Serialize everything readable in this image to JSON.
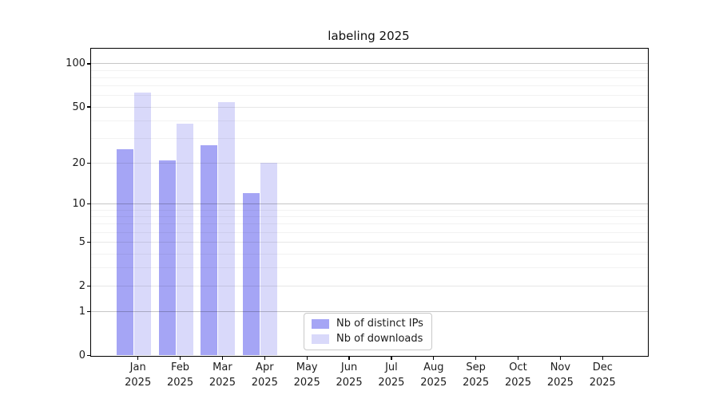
{
  "title": "labeling 2025",
  "chart_data": {
    "type": "bar",
    "title": "labeling 2025",
    "yscale": "log1p",
    "grid": "on",
    "legend_position": "lower center-left inside plot",
    "months": [
      "Jan",
      "Feb",
      "Mar",
      "Apr",
      "May",
      "Jun",
      "Jul",
      "Aug",
      "Sep",
      "Oct",
      "Nov",
      "Dec"
    ],
    "year": "2025",
    "series": [
      {
        "name": "Nb of distinct IPs",
        "color": "#a5a5f5",
        "values": [
          25,
          21,
          27,
          12,
          null,
          null,
          null,
          null,
          null,
          null,
          null,
          null
        ]
      },
      {
        "name": "Nb of downloads",
        "color": "#d9d9fa",
        "values": [
          63,
          38,
          54,
          20,
          null,
          null,
          null,
          null,
          null,
          null,
          null,
          null
        ]
      }
    ],
    "y_ticks": [
      100,
      50,
      20,
      10,
      5,
      2,
      1,
      0
    ],
    "ylim": [
      0,
      128
    ],
    "gridline_values": {
      "major": [
        1,
        10,
        100
      ],
      "mid": [
        2,
        5,
        20,
        50
      ],
      "minor": [
        3,
        4,
        6,
        7,
        8,
        9,
        30,
        40,
        60,
        70,
        80,
        90
      ]
    },
    "grid_colors": {
      "major": "#c6c6c6",
      "mid": "#e7e7e7",
      "minor": "#f2f2f2"
    }
  }
}
